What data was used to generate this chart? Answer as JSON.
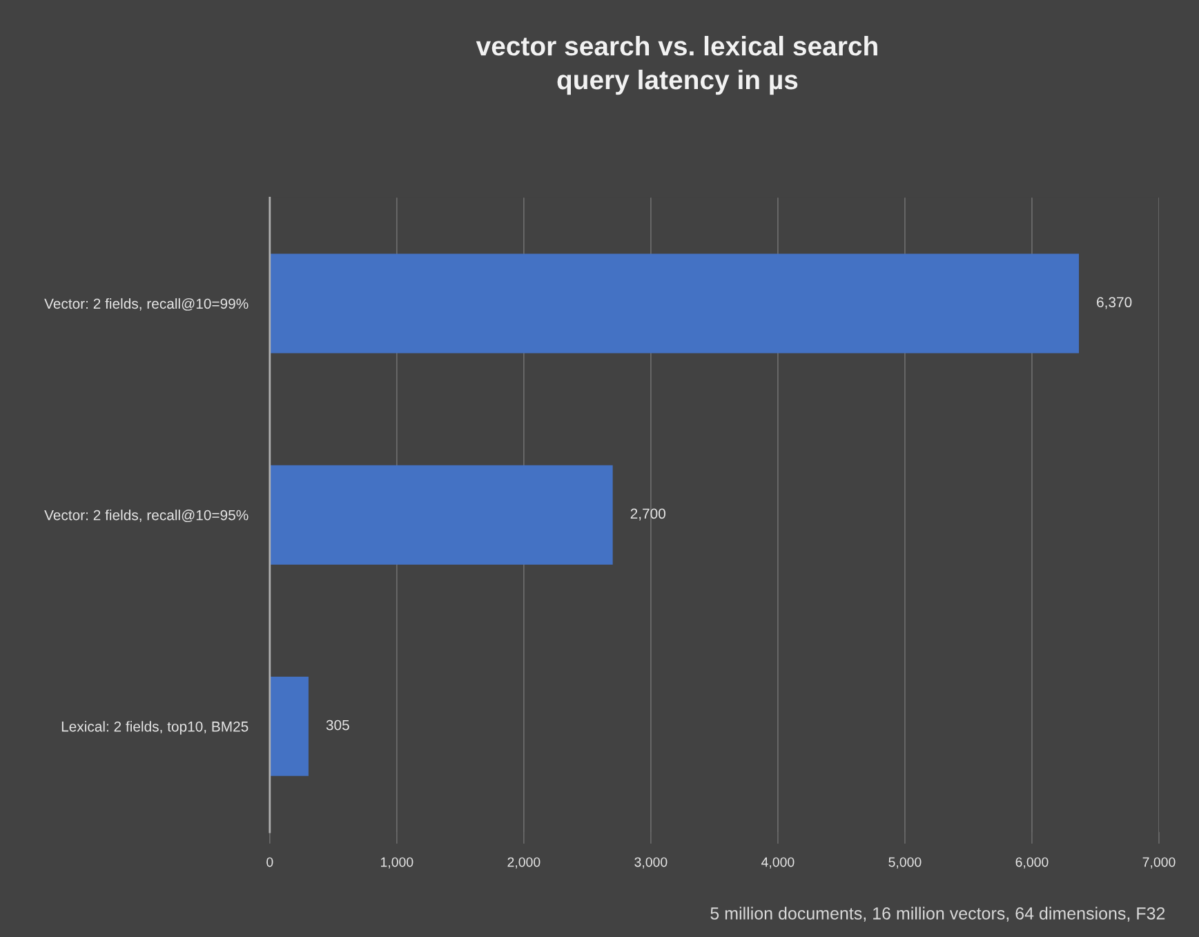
{
  "chart_data": {
    "type": "bar",
    "orientation": "horizontal",
    "title": "vector search vs. lexical search\nquery latency in µs",
    "categories": [
      "Vector: 2 fields, recall@10=99%",
      "Vector: 2 fields, recall@10=95%",
      "Lexical: 2 fields, top10, BM25"
    ],
    "values": [
      6370,
      2700,
      305
    ],
    "color": "#4472c4",
    "value_labels": [
      "6,370",
      "2,700",
      "305"
    ],
    "xlim": [
      0,
      7000
    ],
    "xticks": [
      0,
      {
        "value": 1000,
        "label": "1,000"
      },
      {
        "value": 2000,
        "label": "2,000"
      },
      {
        "value": 3000,
        "label": "3,000"
      },
      {
        "value": 4000,
        "label": "4,000"
      },
      {
        "value": 5000,
        "label": "5,000"
      },
      {
        "value": 6000,
        "label": "6,000"
      },
      {
        "value": 7000,
        "label": "7,000"
      }
    ],
    "grid": "x",
    "annotations": [
      "5 million documents, 16 million vectors, 64 dimensions, F32"
    ]
  }
}
